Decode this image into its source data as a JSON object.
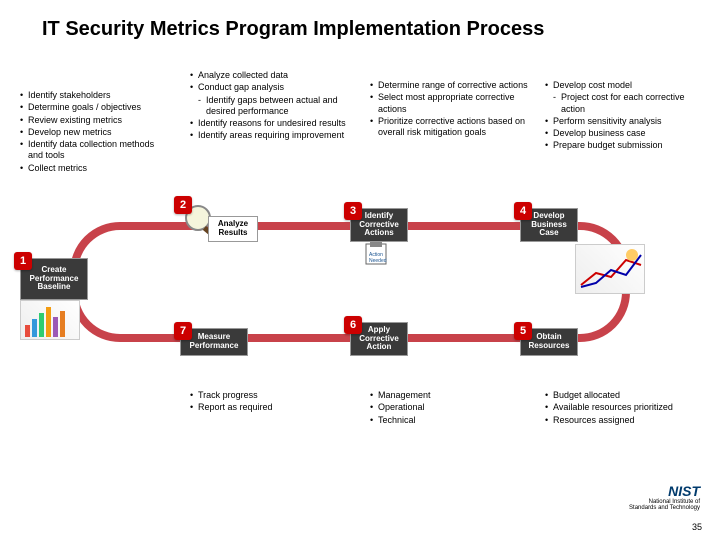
{
  "title": "IT Security Metrics Program Implementation Process",
  "page_number": "35",
  "footer": {
    "org": "NIST",
    "tagline": "National Institute of\nStandards and Technology"
  },
  "columns": {
    "c1": [
      {
        "t": "Identify stakeholders"
      },
      {
        "t": "Determine goals / objectives"
      },
      {
        "t": "Review existing metrics"
      },
      {
        "t": "Develop new metrics"
      },
      {
        "t": "Identify data collection methods and tools"
      },
      {
        "t": "Collect metrics"
      }
    ],
    "c2": [
      {
        "t": "Analyze collected data"
      },
      {
        "t": "Conduct gap analysis"
      },
      {
        "t": "Identify gaps between actual and desired performance",
        "sub": true
      },
      {
        "t": "Identify reasons for undesired results"
      },
      {
        "t": "Identify areas requiring improvement"
      }
    ],
    "c3": [
      {
        "t": "Determine range of corrective actions"
      },
      {
        "t": "Select most appropriate corrective actions"
      },
      {
        "t": "Prioritize corrective actions based on overall risk mitigation goals"
      }
    ],
    "c4": [
      {
        "t": "Develop cost model"
      },
      {
        "t": "Project cost for each corrective action",
        "sub": true
      },
      {
        "t": "Perform sensitivity analysis"
      },
      {
        "t": "Develop business case"
      },
      {
        "t": "Prepare budget submission"
      }
    ],
    "c5": [
      {
        "t": "Track progress"
      },
      {
        "t": "Report as required"
      }
    ],
    "c6": [
      {
        "t": "Management"
      },
      {
        "t": "Operational"
      },
      {
        "t": "Technical"
      }
    ],
    "c7": [
      {
        "t": "Budget allocated"
      },
      {
        "t": "Available resources prioritized"
      },
      {
        "t": "Resources assigned"
      }
    ]
  },
  "stages": {
    "s1": {
      "num": "1",
      "label": "Create\nPerformance\nBaseline"
    },
    "s2": {
      "num": "2",
      "label": "Analyze\nResults"
    },
    "s3": {
      "num": "3",
      "label": "Identify\nCorrective\nActions"
    },
    "s4": {
      "num": "4",
      "label": "Develop\nBusiness\nCase"
    },
    "s5": {
      "num": "5",
      "label": "Obtain\nResources"
    },
    "s6": {
      "num": "6",
      "label": "Apply\nCorrective\nAction"
    },
    "s7": {
      "num": "7",
      "label": "Measure\nPerformance"
    }
  },
  "colors": {
    "ring": "#c8424a",
    "badge": "#c00000",
    "title": "#000000"
  }
}
